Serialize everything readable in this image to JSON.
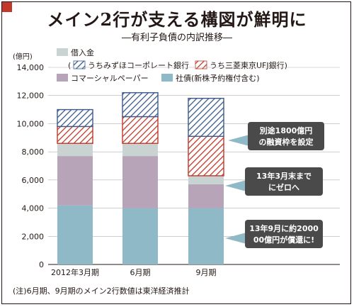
{
  "title": "メイン2行が支える構図が鮮明に",
  "subtitle": "―有利子負債の内訳推移―",
  "note": "(注)6月期、9月期のメイン2行数値は東洋経済推計",
  "legend": {
    "borrowings": "借入金",
    "mizuho_prefix": "(",
    "mizuho": "うちみずほコーポレート銀行",
    "mufg": "うち三菱東京UFJ銀行)",
    "cp": "コマーシャルペーパー",
    "bonds": "社債(新株予約権付含む)"
  },
  "colors": {
    "bonds": "#8fb9c6",
    "cp": "#b8a4b8",
    "other_borrowings": "#c9d4d2",
    "mufg_hatch": "#c0392b",
    "mizuho_hatch": "#3a5a8c",
    "callout": "#4a4a4a",
    "callout_arrow": "#8fb9c6"
  },
  "callouts": [
    {
      "line1": "別途1800億円",
      "line2": "の融資枠を設定"
    },
    {
      "line1": "13年3月末まで",
      "line2": "にゼロへ"
    },
    {
      "line1": "13年9月に約2000",
      "line2": "00億円が償還に!"
    }
  ],
  "chart_data": {
    "type": "bar",
    "stacked": true,
    "categories": [
      "2012年3月期",
      "6月期",
      "9月期"
    ],
    "ylabel": "(億円)",
    "ylim": [
      0,
      14000
    ],
    "yticks": [
      "0",
      "2,000",
      "4,000",
      "6,000",
      "8,000",
      "10,000",
      "12,000",
      "14,000"
    ],
    "series": [
      {
        "name": "社債(新株予約権付含む)",
        "values": [
          4200,
          4000,
          4000
        ]
      },
      {
        "name": "コマーシャルペーパー",
        "values": [
          3500,
          3700,
          1700
        ]
      },
      {
        "name": "借入金",
        "values": [
          900,
          900,
          600
        ]
      },
      {
        "name": "うち三菱東京UFJ銀行",
        "values": [
          1200,
          1900,
          2800
        ]
      },
      {
        "name": "うちみずほコーポレート銀行",
        "values": [
          1200,
          1700,
          2700
        ]
      }
    ]
  }
}
